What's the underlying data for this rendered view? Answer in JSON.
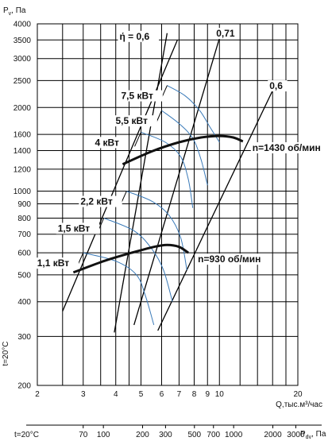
{
  "chart_data": {
    "type": "line",
    "title": "",
    "y_axis": {
      "label": "Pv, Па",
      "label_main": "P",
      "label_sub": "v",
      "label_unit": ", Па",
      "scale": "log",
      "ylim": [
        200,
        4000
      ],
      "ticks": [
        "4000",
        "3500",
        "3000",
        "2500",
        "2000",
        "1600",
        "1400",
        "1200",
        "1000",
        "900",
        "800",
        "700",
        "600",
        "500",
        "400",
        "300",
        "200"
      ]
    },
    "x_axis": {
      "label": "Q,тыс.м³/час",
      "scale": "log",
      "xlim": [
        2,
        20
      ],
      "ticks": [
        "2",
        "3",
        "4",
        "5",
        "6",
        "7",
        "8",
        "9",
        "10",
        "20"
      ]
    },
    "x2_axis": {
      "label": "Pdv, Па",
      "label_main": "P",
      "label_sub": "dv",
      "label_unit": ", Па",
      "left_note": "t=20°C",
      "ticks": [
        "70",
        "100",
        "200",
        "300",
        "500",
        "700",
        "1000",
        "2000",
        "3000"
      ]
    },
    "side_note": "t=20°C",
    "efficiency_lines": [
      {
        "label": "ή = 0,6",
        "points": [
          [
            3.95,
            310
          ],
          [
            6.3,
            3700
          ]
        ]
      },
      {
        "label": "0,71",
        "points": [
          [
            4.7,
            330
          ],
          [
            10.0,
            3550
          ]
        ]
      },
      {
        "label": "0,6",
        "points": [
          [
            5.8,
            315
          ],
          [
            16.0,
            2300
          ]
        ]
      },
      {
        "label": "",
        "points": [
          [
            2.5,
            370
          ],
          [
            6.9,
            3500
          ]
        ]
      }
    ],
    "speed_curves": [
      {
        "name": "n=1430 об/мин",
        "color": "#111111",
        "points": [
          [
            4.25,
            1250
          ],
          [
            5.5,
            1390
          ],
          [
            7.0,
            1500
          ],
          [
            8.5,
            1560
          ],
          [
            10.0,
            1580
          ],
          [
            11.3,
            1560
          ],
          [
            12.3,
            1510
          ]
        ]
      },
      {
        "name": "n=930 об/мин",
        "color": "#111111",
        "points": [
          [
            2.75,
            510
          ],
          [
            3.6,
            560
          ],
          [
            4.6,
            600
          ],
          [
            5.6,
            630
          ],
          [
            6.3,
            640
          ],
          [
            7.0,
            630
          ],
          [
            7.6,
            600
          ]
        ]
      }
    ],
    "power_curves": [
      {
        "name": "7,5 кВт",
        "color": "#3a7ab8",
        "points": [
          [
            6.3,
            2400
          ],
          [
            7.4,
            2200
          ],
          [
            8.4,
            1950
          ],
          [
            9.2,
            1700
          ],
          [
            10.0,
            1500
          ]
        ]
      },
      {
        "name": "5,5 кВт",
        "color": "#3a7ab8",
        "points": [
          [
            6.0,
            1950
          ],
          [
            7.0,
            1750
          ],
          [
            7.9,
            1550
          ],
          [
            8.5,
            1300
          ],
          [
            9.0,
            1050
          ]
        ]
      },
      {
        "name": "4 кВт",
        "color": "#3a7ab8",
        "points": [
          [
            5.0,
            1630
          ],
          [
            6.2,
            1500
          ],
          [
            7.1,
            1330
          ],
          [
            7.6,
            1100
          ],
          [
            7.9,
            870
          ]
        ]
      },
      {
        "name": "2,2 кВт",
        "color": "#3a7ab8",
        "points": [
          [
            4.4,
            1000
          ],
          [
            5.5,
            920
          ],
          [
            6.4,
            820
          ],
          [
            7.1,
            680
          ],
          [
            7.5,
            520
          ]
        ]
      },
      {
        "name": "1,5 кВт",
        "color": "#3a7ab8",
        "points": [
          [
            3.6,
            800
          ],
          [
            4.7,
            720
          ],
          [
            5.5,
            620
          ],
          [
            6.1,
            520
          ],
          [
            6.6,
            400
          ]
        ]
      },
      {
        "name": "1,1 кВт",
        "color": "#3a7ab8",
        "points": [
          [
            3.0,
            600
          ],
          [
            4.0,
            560
          ],
          [
            4.8,
            500
          ],
          [
            5.2,
            420
          ],
          [
            5.6,
            330
          ]
        ]
      }
    ]
  }
}
